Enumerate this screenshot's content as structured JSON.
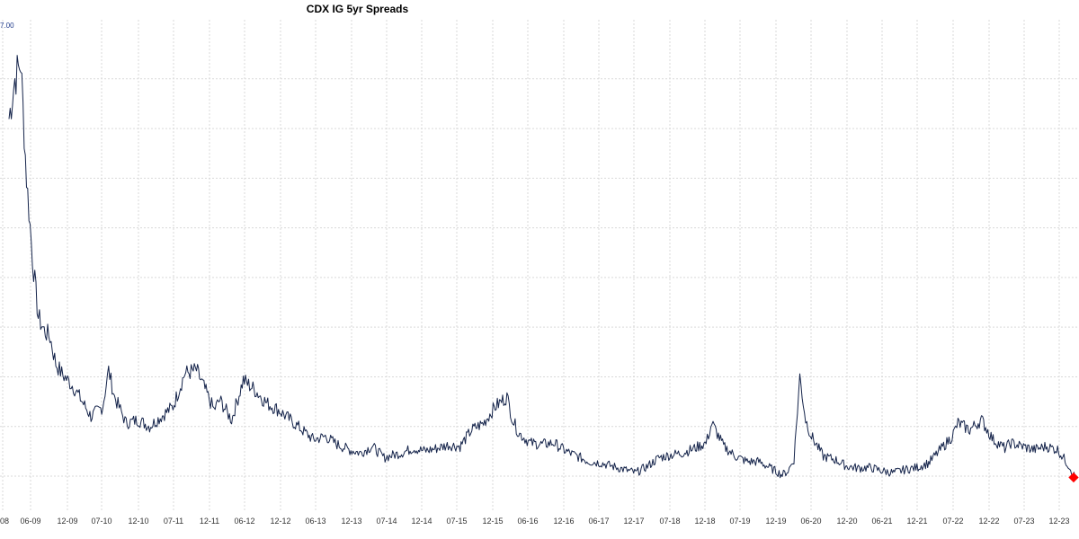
{
  "chart_data": {
    "type": "line",
    "title": "CDX IG 5yr Spreads",
    "xlabel": "",
    "ylabel": "",
    "grid": true,
    "y_tick_label": "7.00",
    "x_tick_labels": [
      "08",
      "06-09",
      "12-09",
      "07-10",
      "12-10",
      "07-11",
      "12-11",
      "06-12",
      "12-12",
      "06-13",
      "12-13",
      "07-14",
      "12-14",
      "07-15",
      "12-15",
      "06-16",
      "12-16",
      "06-17",
      "12-17",
      "07-18",
      "12-18",
      "07-19",
      "12-19",
      "06-20",
      "12-20",
      "06-21",
      "12-21",
      "07-22",
      "12-22",
      "07-23",
      "12-23"
    ],
    "xlim": [
      "2008-12",
      "2024-02"
    ],
    "series": [
      {
        "name": "",
        "color": "#14234a",
        "x": [
          "2008-12",
          "2009-01",
          "2009-02",
          "2009-03",
          "2009-04",
          "2009-05",
          "2009-06",
          "2009-07",
          "2009-08",
          "2009-09",
          "2009-10",
          "2009-11",
          "2009-12",
          "2010-02",
          "2010-04",
          "2010-05",
          "2010-06",
          "2010-07",
          "2010-08",
          "2010-10",
          "2010-12",
          "2011-02",
          "2011-04",
          "2011-06",
          "2011-08",
          "2011-10",
          "2011-11",
          "2011-12",
          "2012-02",
          "2012-04",
          "2012-06",
          "2012-08",
          "2012-10",
          "2012-12",
          "2013-02",
          "2013-04",
          "2013-06",
          "2013-08",
          "2013-10",
          "2013-12",
          "2014-02",
          "2014-04",
          "2014-07",
          "2014-09",
          "2014-11",
          "2015-01",
          "2015-03",
          "2015-05",
          "2015-07",
          "2015-09",
          "2015-11",
          "2016-01",
          "2016-02",
          "2016-03",
          "2016-05",
          "2016-07",
          "2016-09",
          "2016-11",
          "2017-01",
          "2017-03",
          "2017-05",
          "2017-07",
          "2017-09",
          "2017-11",
          "2018-01",
          "2018-03",
          "2018-05",
          "2018-07",
          "2018-09",
          "2018-11",
          "2018-12",
          "2019-02",
          "2019-04",
          "2019-06",
          "2019-08",
          "2019-10",
          "2019-12",
          "2020-01",
          "2020-02",
          "2020-03",
          "2020-04",
          "2020-05",
          "2020-07",
          "2020-09",
          "2020-11",
          "2021-01",
          "2021-03",
          "2021-05",
          "2021-07",
          "2021-09",
          "2021-11",
          "2022-01",
          "2022-03",
          "2022-05",
          "2022-06",
          "2022-08",
          "2022-10",
          "2022-12",
          "2023-02",
          "2023-03",
          "2023-05",
          "2023-07",
          "2023-09",
          "2023-11",
          "2024-01",
          "2024-02"
        ],
        "values": [
          5.9,
          6.5,
          6.75,
          5.0,
          3.8,
          2.9,
          2.7,
          2.6,
          2.2,
          2.05,
          1.95,
          1.85,
          1.7,
          1.4,
          1.55,
          2.1,
          1.7,
          1.5,
          1.3,
          1.35,
          1.25,
          1.4,
          1.55,
          2.05,
          2.1,
          1.7,
          1.5,
          1.65,
          1.35,
          1.95,
          1.8,
          1.6,
          1.5,
          1.35,
          1.2,
          1.05,
          1.1,
          0.98,
          0.9,
          0.85,
          0.95,
          0.78,
          0.85,
          0.92,
          0.88,
          0.92,
          0.97,
          0.95,
          1.2,
          1.3,
          1.55,
          1.7,
          1.35,
          1.15,
          1.0,
          0.98,
          1.0,
          0.88,
          0.8,
          0.72,
          0.7,
          0.65,
          0.6,
          0.55,
          0.65,
          0.78,
          0.82,
          0.85,
          0.92,
          1.0,
          1.3,
          0.95,
          0.8,
          0.72,
          0.72,
          0.62,
          0.52,
          0.58,
          0.75,
          2.0,
          1.35,
          1.1,
          0.8,
          0.75,
          0.65,
          0.62,
          0.63,
          0.58,
          0.55,
          0.6,
          0.63,
          0.7,
          0.9,
          1.1,
          1.3,
          1.2,
          1.35,
          1.05,
          0.92,
          1.0,
          0.95,
          0.9,
          0.95,
          0.9,
          0.65,
          0.48
        ]
      }
    ],
    "highlight_marker": {
      "x": "2024-02",
      "y": 0.48,
      "color": "#ff0000"
    }
  }
}
